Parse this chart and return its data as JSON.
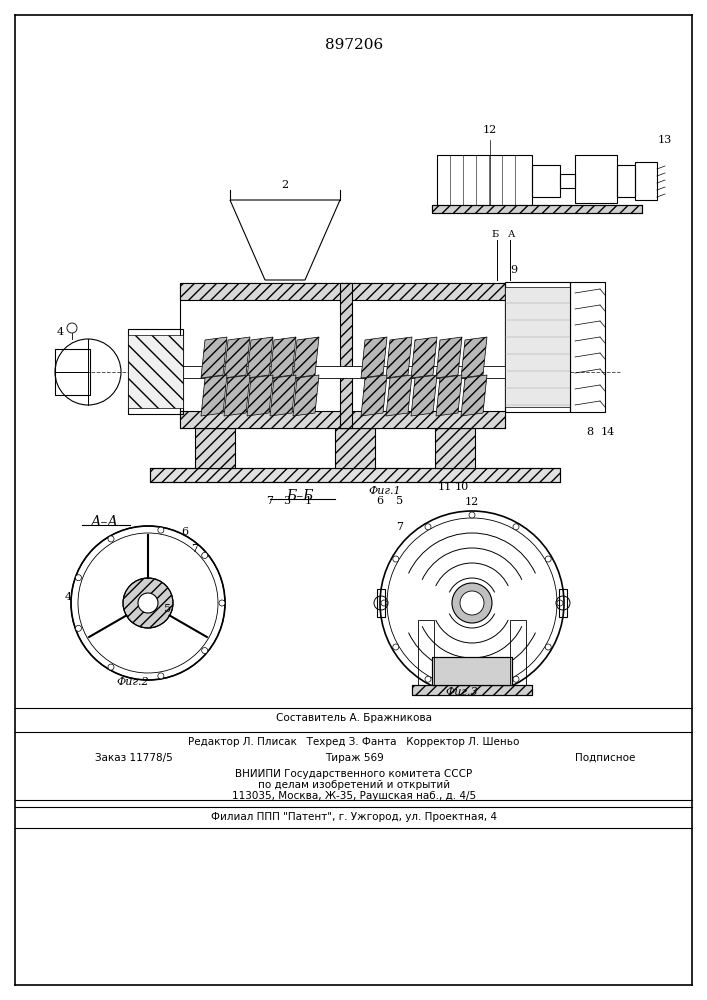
{
  "patent_number": "897206",
  "bg_color": "#ffffff",
  "line_color": "#000000",
  "title_fontsize": 11,
  "label_fontsize": 8,
  "footer_lines": [
    "Составитель А. Бражникова",
    "Редактор Л. Плисак   Техред З. Фанта   Корректор Л. Шеньо",
    "Заказ 11778/5   Тираж 569   Подписное",
    "ВНИИПИ Государственного комитета СССР",
    "по делам изобретений и открытий",
    "113035, Москва, Ж-35, Раушская наб., д. 4/5",
    "Филиал ППП \"Патент\", г. Ужгород, ул. Проектная, 4"
  ]
}
